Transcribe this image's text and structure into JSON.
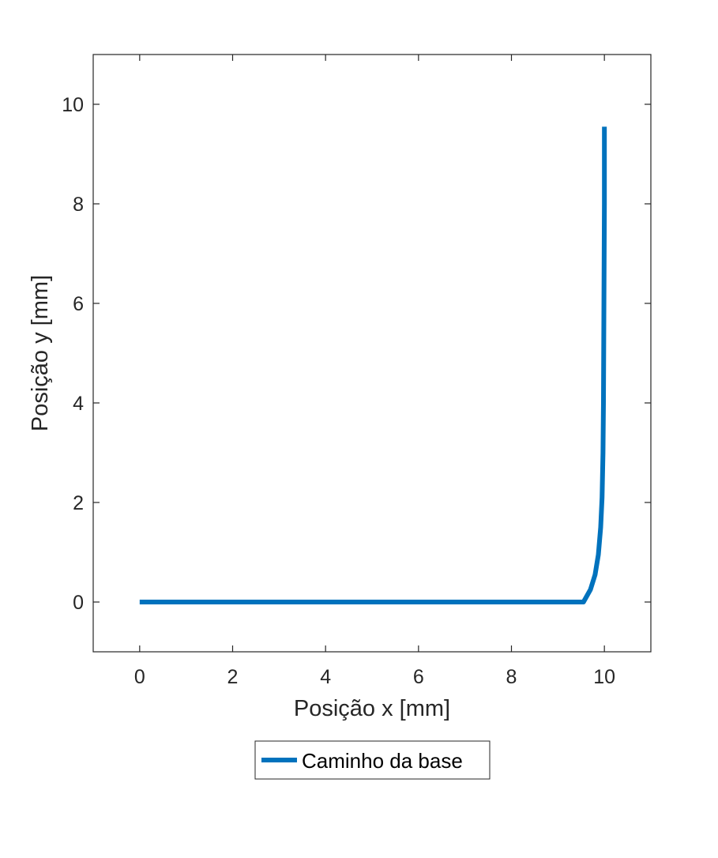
{
  "chart_data": {
    "type": "line",
    "title": "",
    "xlabel": "Posição x [mm]",
    "ylabel": "Posição y [mm]",
    "xlim": [
      -1,
      11
    ],
    "ylim": [
      -1,
      11
    ],
    "xticks": [
      0,
      2,
      4,
      6,
      8,
      10
    ],
    "yticks": [
      0,
      2,
      4,
      6,
      8,
      10
    ],
    "xtick_labels": [
      "0",
      "2",
      "4",
      "6",
      "8",
      "10"
    ],
    "ytick_labels": [
      "0",
      "2",
      "4",
      "6",
      "8",
      "10"
    ],
    "grid": false,
    "legend_position": "below",
    "series": [
      {
        "name": "Caminho da base",
        "color": "#0072BD",
        "x": [
          0,
          2,
          4,
          6,
          8,
          9.55,
          9.7,
          9.8,
          9.87,
          9.92,
          9.95,
          9.97,
          9.98,
          9.99,
          10.0,
          10.0
        ],
        "y": [
          0,
          0,
          0,
          0,
          0,
          0,
          0.25,
          0.55,
          0.95,
          1.5,
          2.1,
          3.0,
          4.0,
          6.0,
          8.0,
          9.55
        ]
      }
    ]
  }
}
